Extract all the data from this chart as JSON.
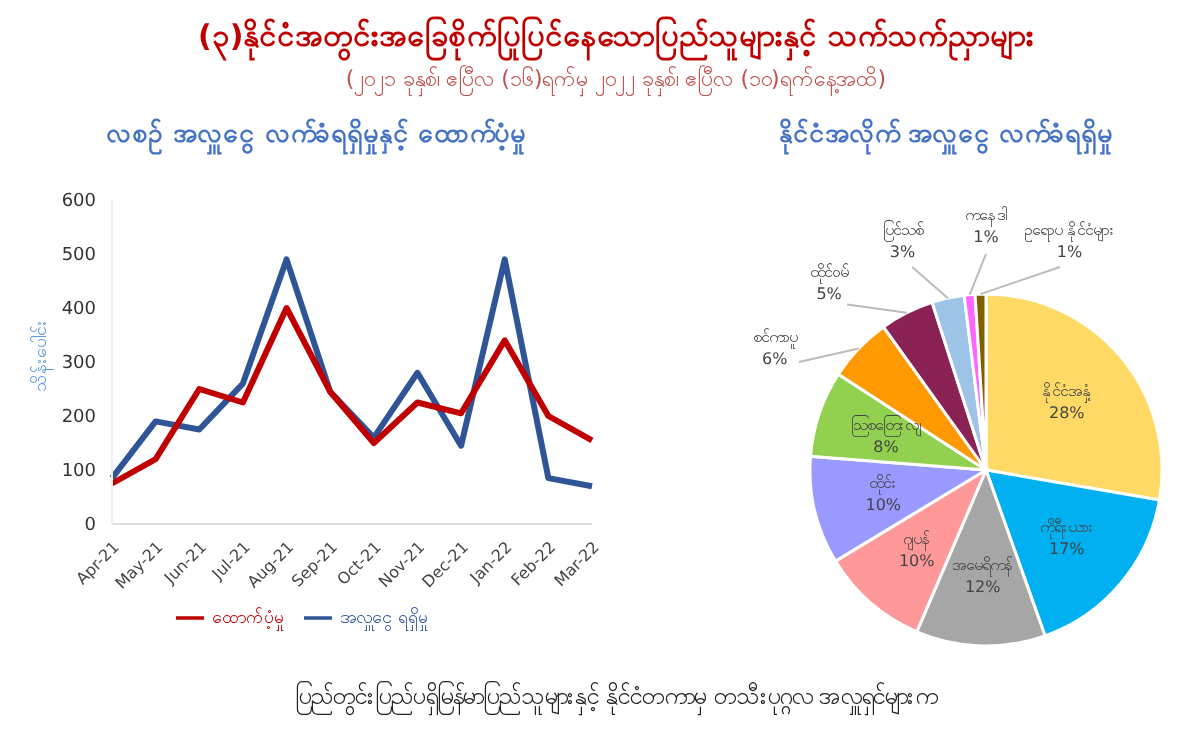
{
  "chart_data": [
    {
      "type": "other",
      "title": "(၃)နိုင်ငံအတွင်းအခြေစိုက်ပြုပြင်နေသောပြည်သူများနှင့် သက်သက်ညှာများ",
      "subtitle": "(၂၀၂၁ ခုနှစ်၊ ဧပြီလ (၁၆)ရက်မှ ၂၀၂၂ ခုနှစ်၊ ဧပြီလ (၁၀)ရက်နေ့အထိ)",
      "annotations": [
        "ပြည်တွင်းပြည်ပရှိမြန်မာပြည်သူများနှင့် နိုင်ငံတကာမှ တသီးပုဂ္ဂလ အလှူရှင်များက"
      ]
    },
    {
      "type": "line",
      "title": "လစဉ် အလှူငွေ လက်ခံရရှိမှုနှင့် ထောက်ပံ့မှု",
      "ylabel": "သိန်းပေါင်း",
      "categories": [
        "Apr-21",
        "May-21",
        "Jun-21",
        "Jul-21",
        "Aug-21",
        "Sep-21",
        "Oct-21",
        "Nov-21",
        "Dec-21",
        "Jan-22",
        "Feb-22",
        "Mar-22"
      ],
      "series": [
        {
          "name": "အလှူငွေ ရရှိမှု",
          "color": "#2f5597",
          "values": [
            85,
            190,
            175,
            260,
            490,
            245,
            160,
            280,
            145,
            490,
            85,
            70
          ]
        },
        {
          "name": "ထောက်ပံ့မှု",
          "color": "#c00000",
          "values": [
            75,
            120,
            250,
            225,
            400,
            245,
            150,
            225,
            205,
            340,
            200,
            155
          ]
        }
      ],
      "ylim": [
        0,
        600
      ],
      "yticks": [
        0,
        100,
        200,
        300,
        400,
        500,
        600
      ],
      "legend": "bottom",
      "marker": "none",
      "line_style": "solid"
    },
    {
      "type": "pie",
      "title": "နိုင်ငံအလိုက် အလှူငွေ လက်ခံရရှိမှု",
      "categories": [
        "နိုင်ငံအနှံ့",
        "ကိုရီးယား",
        "အမေရိကန်",
        "ဂျပန်",
        "ထိုင်း",
        "ဩစတြေးလျ",
        "စင်ကာပူ",
        "ထိုင်ဝမ်",
        "ပြင်သစ်",
        "ကနေဒါ",
        "ဥရောပ နိုင်ငံများ"
      ],
      "values": [
        28,
        17,
        12,
        10,
        10,
        8,
        6,
        5,
        3,
        1,
        1
      ],
      "value_labels": [
        "28%",
        "17%",
        "12%",
        "10%",
        "10%",
        "8%",
        "6%",
        "5%",
        "3%",
        "1%",
        "1%"
      ],
      "colors": [
        "#ffd966",
        "#00b0f0",
        "#a6a6a6",
        "#ff9999",
        "#9999ff",
        "#92d050",
        "#ff9900",
        "#8b2255",
        "#9dc3e6",
        "#ff66ff",
        "#7f6000"
      ]
    }
  ]
}
